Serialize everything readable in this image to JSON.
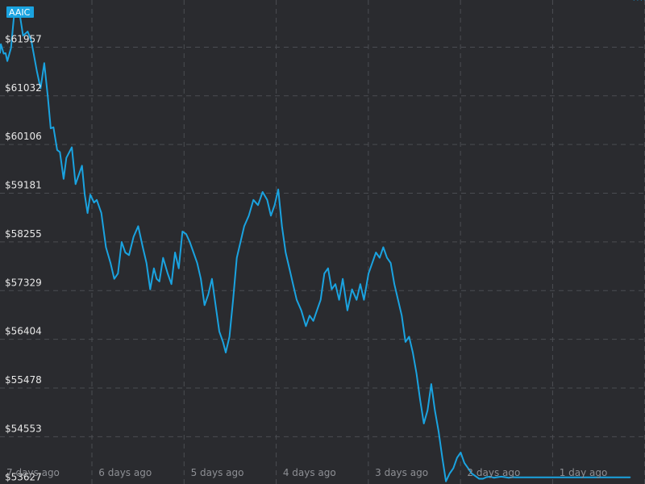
{
  "chart_data": {
    "type": "line",
    "title": "",
    "xlabel": "",
    "ylabel": "",
    "series": [
      {
        "name": "AAIC",
        "x_days_ago": [
          7.0,
          6.99,
          6.96,
          6.94,
          6.92,
          6.88,
          6.85,
          6.81,
          6.78,
          6.75,
          6.7,
          6.66,
          6.6,
          6.56,
          6.52,
          6.48,
          6.45,
          6.42,
          6.38,
          6.35,
          6.31,
          6.28,
          6.22,
          6.18,
          6.15,
          6.11,
          6.08,
          6.05,
          6.02,
          5.98,
          5.95,
          5.9,
          5.85,
          5.8,
          5.76,
          5.72,
          5.68,
          5.64,
          5.6,
          5.55,
          5.5,
          5.45,
          5.41,
          5.37,
          5.33,
          5.3,
          5.27,
          5.23,
          5.18,
          5.14,
          5.1,
          5.06,
          5.02,
          4.98,
          4.94,
          4.9,
          4.86,
          4.82,
          4.78,
          4.74,
          4.7,
          4.66,
          4.62,
          4.58,
          4.55,
          4.51,
          4.47,
          4.43,
          4.39,
          4.35,
          4.3,
          4.25,
          4.2,
          4.15,
          4.1,
          4.06,
          4.02,
          3.98,
          3.94,
          3.9,
          3.86,
          3.82,
          3.78,
          3.73,
          3.68,
          3.64,
          3.6,
          3.56,
          3.52,
          3.48,
          3.44,
          3.4,
          3.36,
          3.32,
          3.28,
          3.23,
          3.18,
          3.13,
          3.09,
          3.05,
          3.0,
          2.96,
          2.92,
          2.88,
          2.84,
          2.8,
          2.76,
          2.72,
          2.68,
          2.64,
          2.6,
          2.56,
          2.52,
          2.48,
          2.44,
          2.4,
          2.36,
          2.32,
          2.28,
          2.24,
          2.2,
          2.16,
          2.12,
          2.08,
          2.04,
          2.0,
          1.96,
          1.92,
          1.88,
          1.84,
          1.8,
          1.76,
          1.72,
          1.68,
          1.64,
          1.6,
          1.56,
          1.52,
          1.48,
          1.44,
          1.4,
          1.36,
          1.32,
          1.28,
          1.24,
          1.2,
          1.16,
          1.12,
          1.08,
          1.04,
          1.0,
          0.96,
          0.92,
          0.88,
          0.84,
          0.8,
          0.76,
          0.72,
          0.68,
          0.64,
          0.6,
          0.56,
          0.52,
          0.48,
          0.44,
          0.4,
          0.36,
          0.32,
          0.28,
          0.24,
          0.2,
          0.16,
          0.12,
          0.08,
          0.04,
          0.0
        ],
        "y": [
          61690,
          61860,
          61680,
          61690,
          61540,
          61790,
          62360,
          62540,
          62370,
          62020,
          62100,
          61920,
          61350,
          61020,
          61500,
          60850,
          60260,
          60280,
          59850,
          59810,
          59300,
          59700,
          59900,
          59200,
          59350,
          59550,
          59000,
          58650,
          59000,
          58850,
          58900,
          58650,
          58000,
          57700,
          57400,
          57500,
          58100,
          57900,
          57850,
          58200,
          58400,
          58000,
          57700,
          57200,
          57600,
          57400,
          57350,
          57800,
          57500,
          57300,
          57900,
          57600,
          58300,
          58250,
          58100,
          57900,
          57700,
          57400,
          56900,
          57100,
          57400,
          56900,
          56400,
          56200,
          56000,
          56300,
          57000,
          57800,
          58100,
          58400,
          58600,
          58900,
          58800,
          59050,
          58900,
          58600,
          58800,
          59100,
          58400,
          57900,
          57600,
          57300,
          57000,
          56800,
          56500,
          56700,
          56600,
          56800,
          57000,
          57500,
          57600,
          57200,
          57300,
          57000,
          57400,
          56800,
          57200,
          57000,
          57300,
          57000,
          57500,
          57700,
          57900,
          57800,
          58000,
          57800,
          57700,
          57300,
          57000,
          56700,
          56200,
          56300,
          56000,
          55600,
          55100,
          54650,
          54900,
          55400,
          54900,
          54500,
          54000,
          53550,
          53700,
          53800,
          54000,
          54100,
          53900,
          53800,
          53700,
          53650,
          53600,
          53600,
          53630,
          53640,
          53620,
          53630,
          53640,
          53630,
          53620,
          53630,
          53625,
          53627,
          53627,
          53627,
          53627,
          53627,
          53627,
          53627,
          53627,
          53627,
          53627,
          53627,
          53627,
          53627,
          53627,
          53627,
          53627,
          53627,
          53627,
          53627,
          53627,
          53627,
          53627,
          53627,
          53627,
          53627,
          53627,
          53627,
          53627,
          53627,
          53627,
          53627
        ]
      }
    ],
    "y_tick_labels": [
      "$61957",
      "$61032",
      "$60106",
      "$59181",
      "$58255",
      "$57329",
      "$56404",
      "$55478",
      "$54553",
      "$53627"
    ],
    "y_tick_values": [
      61957,
      61032,
      60106,
      59181,
      58255,
      57329,
      56404,
      55478,
      54553,
      53627
    ],
    "x_tick_labels": [
      "7 days ago",
      "6 days ago",
      "5 days ago",
      "4 days ago",
      "3 days ago",
      "2 days ago",
      "1 day ago"
    ],
    "x_tick_values": [
      7,
      6,
      5,
      4,
      3,
      2,
      1
    ],
    "xlim": [
      7.0,
      0.0
    ],
    "ylim": [
      53500,
      62700
    ],
    "grid": true,
    "legend": "top-left badge",
    "colors": {
      "line": "#1aa3e0",
      "background": "#2a2b2f",
      "grid": "#4b4d52"
    }
  }
}
